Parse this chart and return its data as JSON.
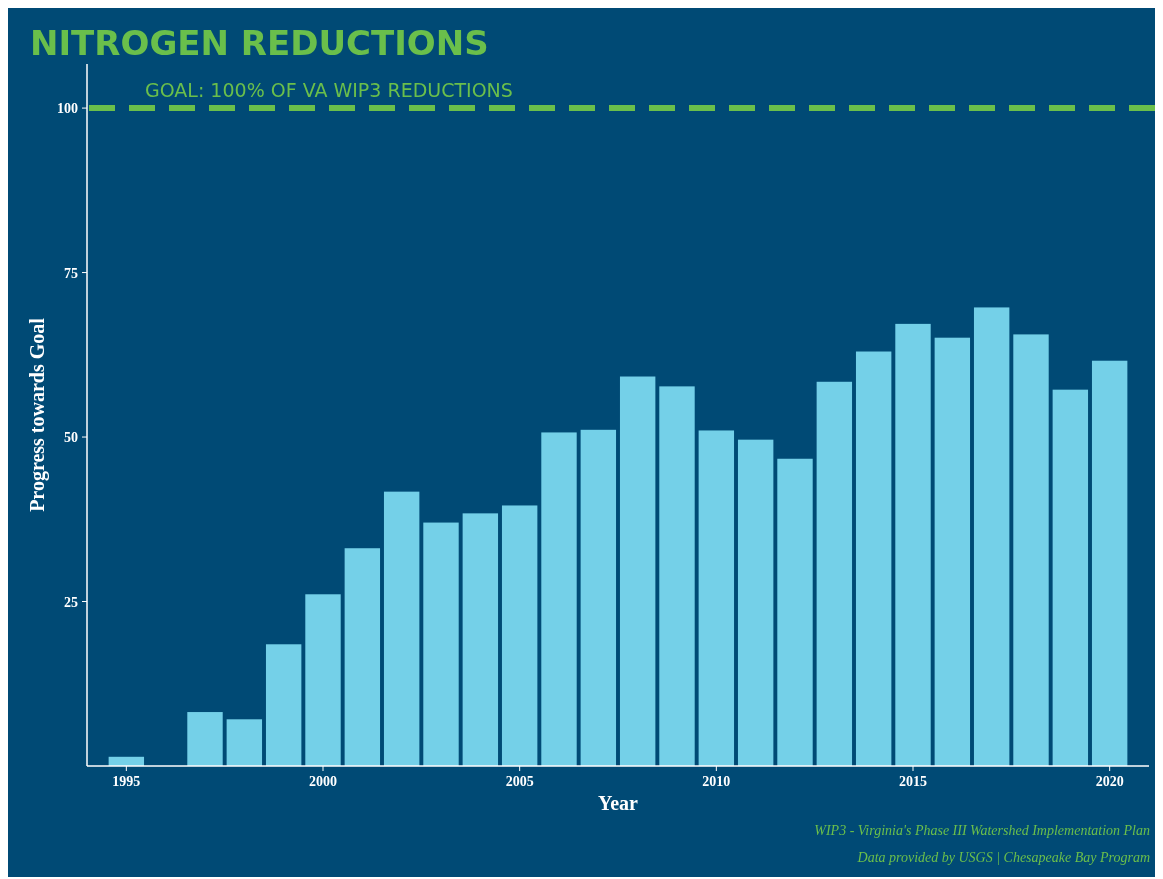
{
  "chart_data": {
    "type": "bar",
    "title": "NITROGEN REDUCTIONS",
    "xlabel": "Year",
    "ylabel": "Progress towards Goal",
    "x": [
      1995,
      1996,
      1997,
      1998,
      1999,
      2000,
      2001,
      2002,
      2003,
      2004,
      2005,
      2006,
      2007,
      2008,
      2009,
      2010,
      2011,
      2012,
      2013,
      2014,
      2015,
      2016,
      2017,
      2018,
      2019,
      2020
    ],
    "values": [
      1.4,
      0,
      8.2,
      7.1,
      18.5,
      26.1,
      33.1,
      41.7,
      37.0,
      38.4,
      39.6,
      50.7,
      51.1,
      59.2,
      57.7,
      51.0,
      49.6,
      46.7,
      58.4,
      63.0,
      67.2,
      65.1,
      69.7,
      65.6,
      57.2,
      61.6
    ],
    "color": "#74d0e8",
    "xlim": [
      1994,
      2021
    ],
    "xticks": [
      1995,
      2000,
      2005,
      2010,
      2015,
      2020
    ],
    "ylim": [
      0,
      106.7
    ],
    "yticks": [
      25,
      50,
      75,
      100
    ],
    "ref_lines": [
      {
        "axis": "y",
        "value": 100,
        "label": "GOAL: 100% OF VA WIP3 REDUCTIONS",
        "color": "#6abf4b",
        "line_style": "dashed"
      }
    ],
    "annotations": [
      "WIP3 - Virginia's Phase III Watershed Implementation Plan",
      "Data provided by USGS | Chesapeake Bay Program"
    ],
    "grid": false
  }
}
